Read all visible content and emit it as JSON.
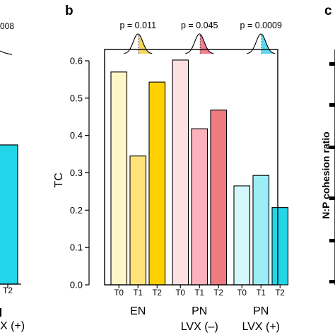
{
  "panels": {
    "left_partial": {
      "pvalue_fragment": "008",
      "tick_fragment": "T2",
      "group_fragment": "X (+)",
      "fill": "#22d5e8"
    },
    "b": {
      "letter": "b"
    },
    "c": {
      "letter": "c",
      "ylabel": "N:P cohesion ratio"
    }
  },
  "chart_data": {
    "type": "bar",
    "ylabel": "TC",
    "ylim": [
      0,
      0.6
    ],
    "yticks": [
      0.0,
      0.1,
      0.2,
      0.3,
      0.4,
      0.5,
      0.6
    ],
    "ytick_labels": [
      "0.0",
      "0.1",
      "0.2",
      "0.3",
      "0.4",
      "0.5",
      "0.6"
    ],
    "groups": [
      {
        "label": "EN",
        "pvalue": "p = 0.011",
        "accent": "#f5d65a",
        "bars": [
          {
            "category": "T0",
            "value": 0.57,
            "color": "#fff6c8"
          },
          {
            "category": "T1",
            "value": 0.345,
            "color": "#ffe37a"
          },
          {
            "category": "T2",
            "value": 0.543,
            "color": "#ffd000"
          }
        ]
      },
      {
        "label": "PN\nLVX (–)",
        "pvalue": "p = 0.045",
        "accent": "#f07c90",
        "bars": [
          {
            "category": "T0",
            "value": 0.602,
            "color": "#fde0e2"
          },
          {
            "category": "T1",
            "value": 0.418,
            "color": "#fbb2bd"
          },
          {
            "category": "T2",
            "value": 0.468,
            "color": "#ef7a80"
          }
        ]
      },
      {
        "label": "PN\nLVX (+)",
        "pvalue": "p = 0.0009",
        "accent": "#5ad8ee",
        "bars": [
          {
            "category": "T0",
            "value": 0.265,
            "color": "#d2f8fb"
          },
          {
            "category": "T1",
            "value": 0.293,
            "color": "#9cedf6"
          },
          {
            "category": "T2",
            "value": 0.207,
            "color": "#22d5e8"
          }
        ]
      }
    ]
  }
}
